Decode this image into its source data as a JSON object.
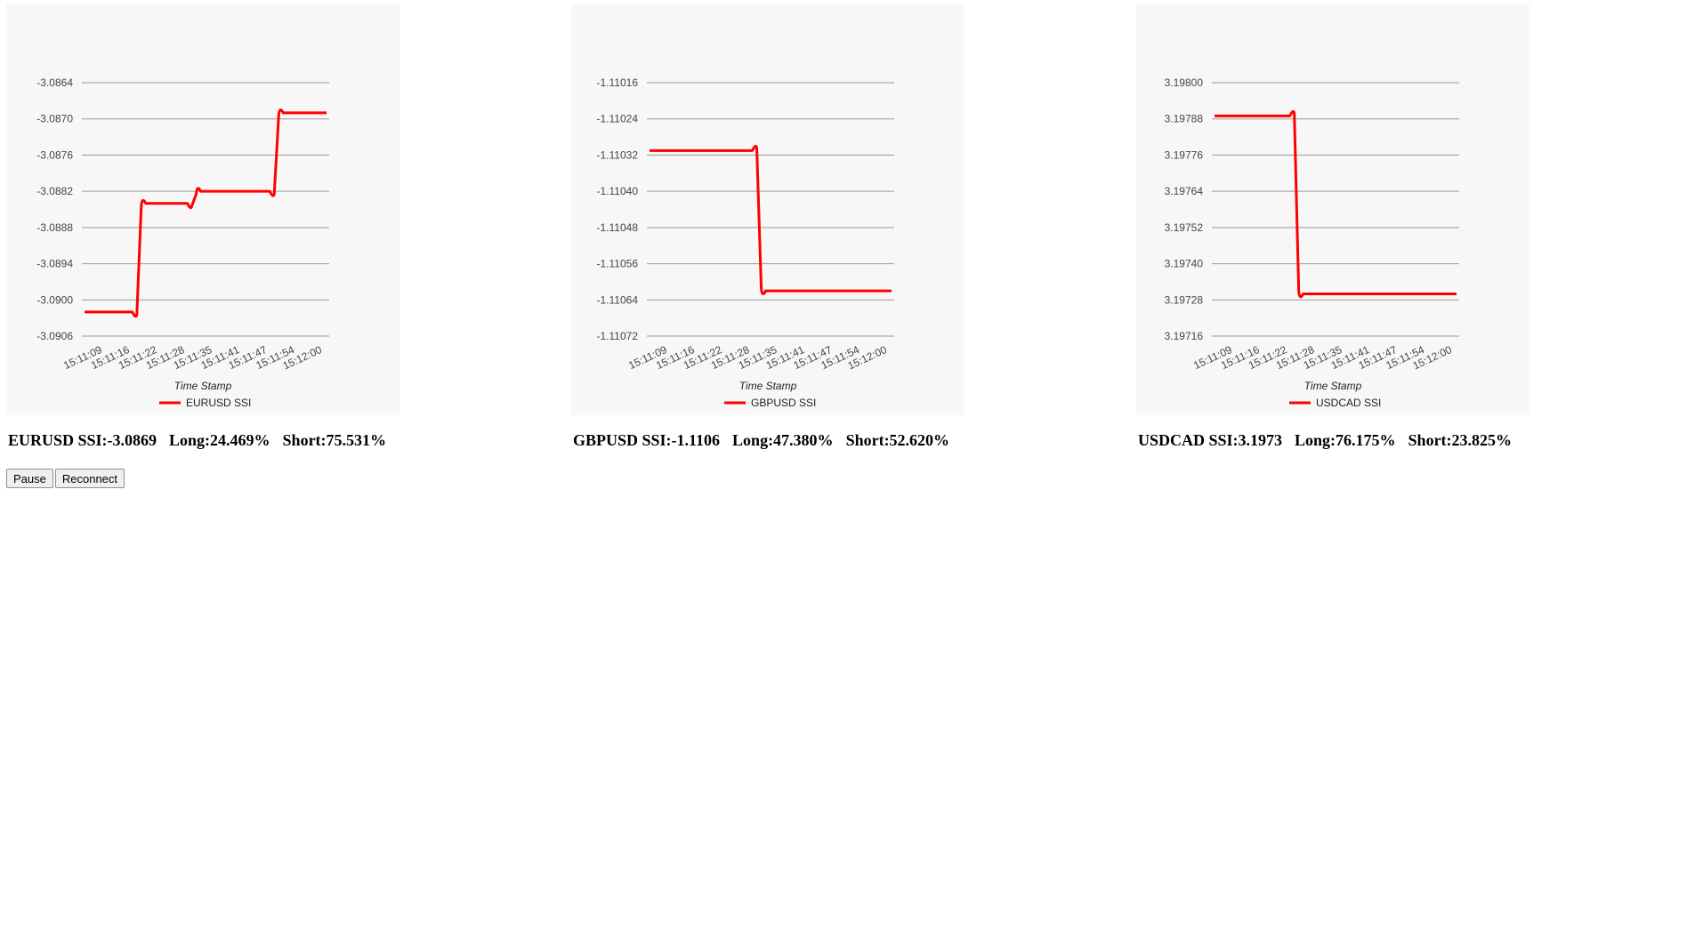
{
  "chart_data": [
    {
      "type": "line",
      "x": [
        "15:11:09",
        "15:11:16",
        "15:11:22",
        "15:11:28",
        "15:11:35",
        "15:11:41",
        "15:11:47",
        "15:11:54",
        "15:12:00"
      ],
      "xlabel": "Time Stamp",
      "ylabel": "",
      "yticks": [
        "-3.0864",
        "-3.0870",
        "-3.0876",
        "-3.0882",
        "-3.0888",
        "-3.0894",
        "-3.0900",
        "-3.0906"
      ],
      "ylim": [
        -3.0906,
        -3.0864
      ],
      "series": [
        {
          "name": "EURUSD SSI",
          "color": "#ff0000",
          "values": [
            -3.0902,
            -3.0902,
            -3.0884,
            -3.0884,
            -3.0882,
            -3.0882,
            -3.0882,
            -3.0869,
            -3.0869
          ]
        }
      ],
      "grid": true,
      "legend": "bottom-center"
    },
    {
      "type": "line",
      "x": [
        "15:11:09",
        "15:11:16",
        "15:11:22",
        "15:11:28",
        "15:11:35",
        "15:11:41",
        "15:11:47",
        "15:11:54",
        "15:12:00"
      ],
      "xlabel": "Time Stamp",
      "ylabel": "",
      "yticks": [
        "-1.11016",
        "-1.11024",
        "-1.11032",
        "-1.11040",
        "-1.11048",
        "-1.11056",
        "-1.11064",
        "-1.11072"
      ],
      "ylim": [
        -1.11072,
        -1.11016
      ],
      "series": [
        {
          "name": "GBPUSD SSI",
          "color": "#ff0000",
          "values": [
            -1.11031,
            -1.11031,
            -1.11031,
            -1.11031,
            -1.11062,
            -1.11062,
            -1.11062,
            -1.11062,
            -1.11062
          ]
        }
      ],
      "grid": true,
      "legend": "bottom-center"
    },
    {
      "type": "line",
      "x": [
        "15:11:09",
        "15:11:16",
        "15:11:22",
        "15:11:28",
        "15:11:35",
        "15:11:41",
        "15:11:47",
        "15:11:54",
        "15:12:00"
      ],
      "xlabel": "Time Stamp",
      "ylabel": "",
      "yticks": [
        "3.19800",
        "3.19788",
        "3.19776",
        "3.19764",
        "3.19752",
        "3.19740",
        "3.19728",
        "3.19716"
      ],
      "ylim": [
        3.19716,
        3.198
      ],
      "series": [
        {
          "name": "USDCAD SSI",
          "color": "#ff0000",
          "values": [
            3.19789,
            3.19789,
            3.19789,
            3.1973,
            3.1973,
            3.1973,
            3.1973,
            3.1973,
            3.1973
          ]
        }
      ],
      "grid": true,
      "legend": "bottom-center"
    }
  ],
  "stats": [
    {
      "pair": "EURUSD SSI:-3.0869",
      "long": "Long:24.469%",
      "short": "Short:75.531%"
    },
    {
      "pair": "GBPUSD SSI:-1.1106",
      "long": "Long:47.380%",
      "short": "Short:52.620%"
    },
    {
      "pair": "USDCAD SSI:3.1973",
      "long": "Long:76.175%",
      "short": "Short:23.825%"
    }
  ],
  "controls": {
    "pause_label": "Pause",
    "reconnect_label": "Reconnect"
  }
}
